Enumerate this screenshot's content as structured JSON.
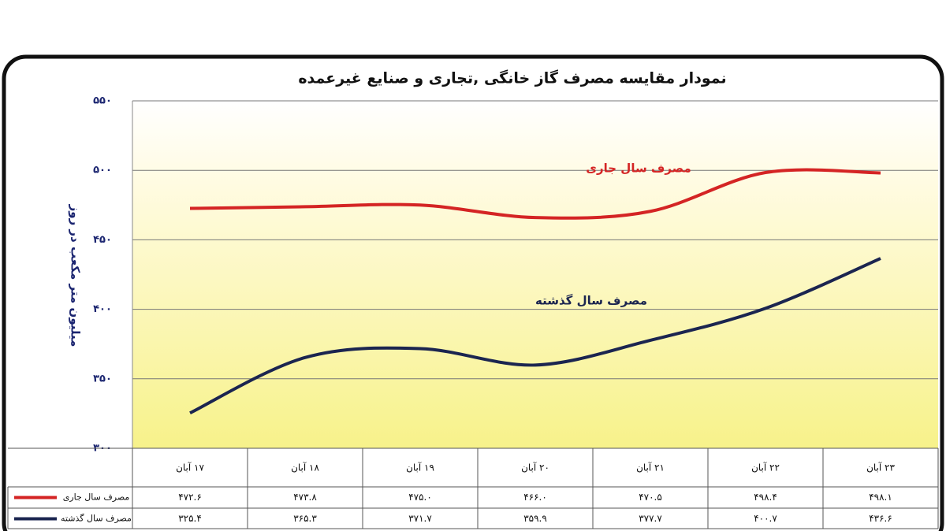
{
  "chart_data": {
    "type": "line",
    "title": "نمودار مقایسه مصرف گاز خانگی ,تجاری و صنایع غیرعمده",
    "y_label": "میلیون متر مکعب در روز",
    "categories": [
      "۱۷ آبان",
      "۱۸ آبان",
      "۱۹ آبان",
      "۲۰ آبان",
      "۲۱ آبان",
      "۲۲ آبان",
      "۲۳ آبان"
    ],
    "series": [
      {
        "name": "مصرف سال جاری",
        "color": "#d42424",
        "values": [
          472.6,
          473.8,
          475.0,
          466.0,
          470.5,
          498.4,
          498.1
        ],
        "value_labels": [
          "۴۷۲.۶",
          "۴۷۳.۸",
          "۴۷۵.۰",
          "۴۶۶.۰",
          "۴۷۰.۵",
          "۴۹۸.۴",
          "۴۹۸.۱"
        ]
      },
      {
        "name": "مصرف سال گذشته",
        "color": "#1b2550",
        "values": [
          325.4,
          365.3,
          371.7,
          359.9,
          377.7,
          400.7,
          436.6
        ],
        "value_labels": [
          "۳۲۵.۴",
          "۳۶۵.۳",
          "۳۷۱.۷",
          "۳۵۹.۹",
          "۳۷۷.۷",
          "۴۰۰.۷",
          "۴۳۶.۶"
        ]
      }
    ],
    "ylim": [
      300,
      550
    ],
    "yticks": [
      {
        "value": 300,
        "label": "۳۰۰"
      },
      {
        "value": 350,
        "label": "۳۵۰"
      },
      {
        "value": 400,
        "label": "۴۰۰"
      },
      {
        "value": 450,
        "label": "۴۵۰"
      },
      {
        "value": 500,
        "label": "۵۰۰"
      },
      {
        "value": 550,
        "label": "۵۵۰"
      }
    ],
    "grid": true
  }
}
